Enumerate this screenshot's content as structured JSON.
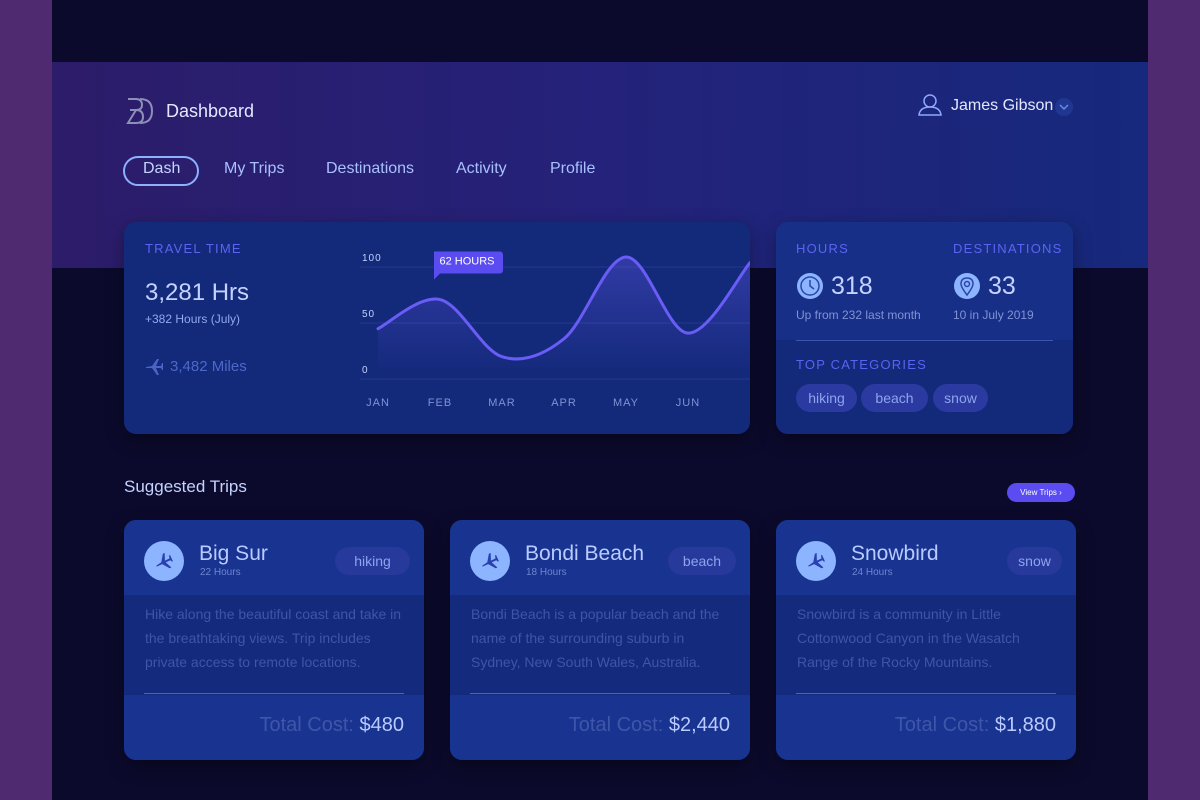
{
  "header": {
    "title": "Dashboard",
    "user": "James Gibson"
  },
  "nav": {
    "items": [
      "Dash",
      "My Trips",
      "Destinations",
      "Activity",
      "Profile"
    ]
  },
  "travel_time": {
    "label": "TRAVEL TIME",
    "value": "3,281 Hrs",
    "sub": "+382 Hours (July)",
    "miles": "3,482 Miles",
    "chart": {
      "type": "line",
      "categories": [
        "JAN",
        "FEB",
        "MAR",
        "APR",
        "MAY",
        "JUN",
        null
      ],
      "values": [
        36,
        62,
        11,
        27,
        100,
        32,
        95
      ],
      "color": "#6a5cf6",
      "ylim": [
        0,
        100
      ],
      "yticks": [
        0,
        50,
        100
      ],
      "grid": true,
      "annotation": "62 HOURS"
    }
  },
  "stats": {
    "hours_label": "HOURS",
    "hours": "318",
    "hours_sub": "Up from 232 last month",
    "dest_label": "DESTINATIONS",
    "destinations": "33",
    "dest_sub": "10 in July 2019",
    "categories_label": "TOP CATEGORIES",
    "categories": [
      "hiking",
      "beach",
      "snow"
    ]
  },
  "suggested": {
    "title": "Suggested Trips",
    "button": "View Trips ›",
    "cost_label": "Total Cost:",
    "trips": [
      {
        "name": "Big Sur",
        "hours": "22 Hours",
        "tag": "hiking",
        "description": "Hike along the beautiful coast and take in the breathtaking views. Trip includes private access to remote locations.",
        "cost": "$480"
      },
      {
        "name": "Bondi Beach",
        "hours": "18 Hours",
        "tag": "beach",
        "description": "Bondi Beach is a popular beach and the name of the surrounding suburb in Sydney, New South Wales, Australia.",
        "cost": "$2,440"
      },
      {
        "name": "Snowbird",
        "hours": "24 Hours",
        "tag": "snow",
        "description": "Snowbird is a community in Little Cottonwood Canyon in the Wasatch Range of the Rocky Mountains.",
        "cost": "$1,880"
      }
    ]
  }
}
